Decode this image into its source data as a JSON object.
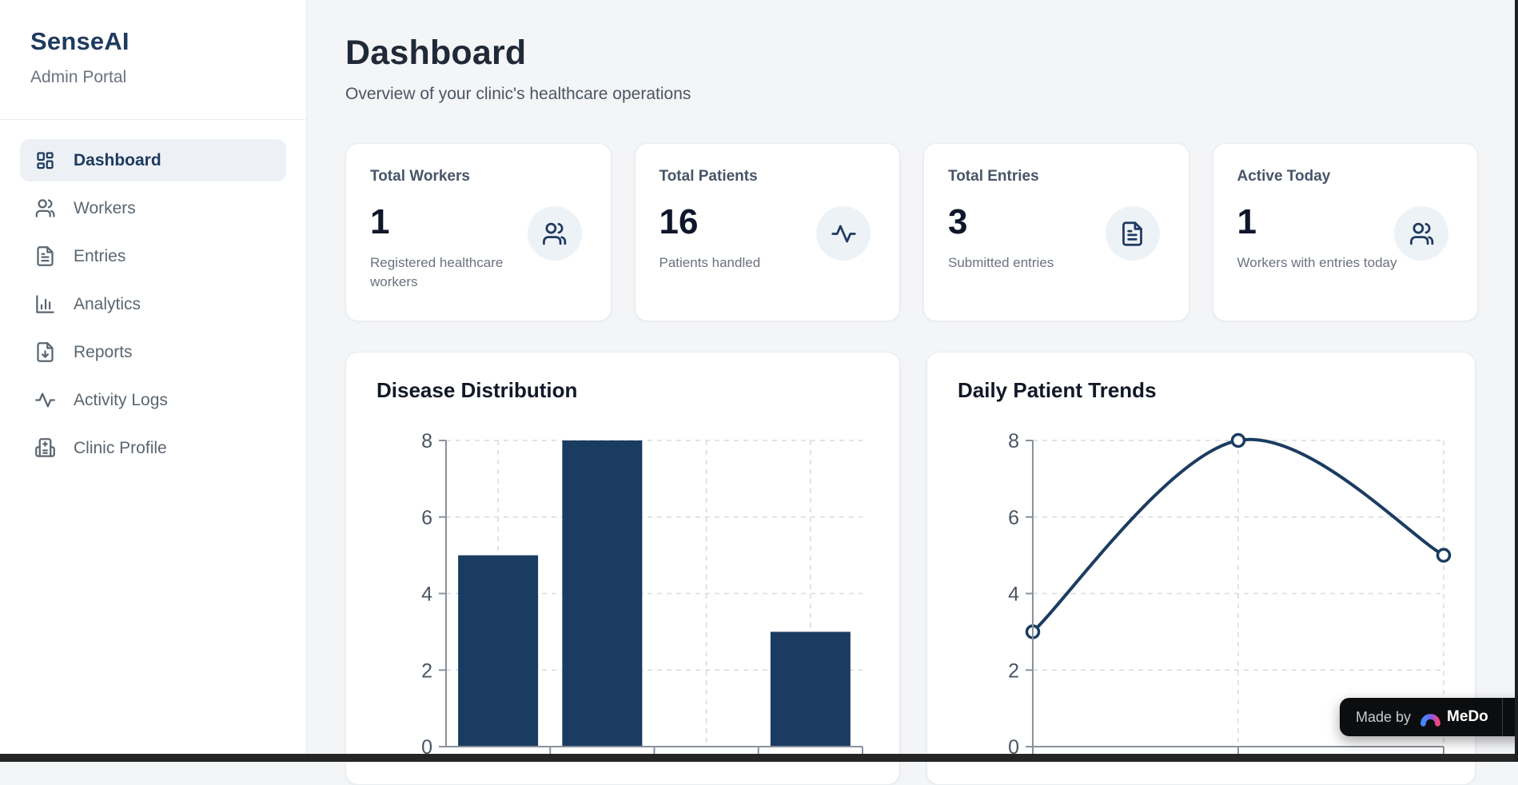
{
  "sidebar": {
    "brand": "SenseAI",
    "subtitle": "Admin Portal",
    "items": [
      {
        "label": "Dashboard",
        "icon": "dashboard-grid-icon",
        "active": true
      },
      {
        "label": "Workers",
        "icon": "users-icon",
        "active": false
      },
      {
        "label": "Entries",
        "icon": "file-text-icon",
        "active": false
      },
      {
        "label": "Analytics",
        "icon": "bar-chart-icon",
        "active": false
      },
      {
        "label": "Reports",
        "icon": "file-download-icon",
        "active": false
      },
      {
        "label": "Activity Logs",
        "icon": "activity-icon",
        "active": false
      },
      {
        "label": "Clinic Profile",
        "icon": "hospital-icon",
        "active": false
      }
    ]
  },
  "header": {
    "title": "Dashboard",
    "subtitle": "Overview of your clinic's healthcare operations"
  },
  "stats": [
    {
      "label": "Total Workers",
      "value": "1",
      "description": "Registered healthcare workers",
      "icon": "users-icon"
    },
    {
      "label": "Total Patients",
      "value": "16",
      "description": "Patients handled",
      "icon": "activity-icon"
    },
    {
      "label": "Total Entries",
      "value": "3",
      "description": "Submitted entries",
      "icon": "file-text-icon"
    },
    {
      "label": "Active Today",
      "value": "1",
      "description": "Workers with entries today",
      "icon": "users-icon"
    }
  ],
  "chart_data": [
    {
      "type": "bar",
      "title": "Disease Distribution",
      "values": [
        5,
        8,
        0,
        3
      ],
      "categories": [
        "",
        "",
        "",
        ""
      ],
      "ylim": [
        0,
        8
      ],
      "yticks": [
        0,
        2,
        4,
        6,
        8
      ],
      "grid": true,
      "bar_color": "#1b3c61",
      "note_x_labels": "cut off below viewport"
    },
    {
      "type": "line",
      "title": "Daily Patient Trends",
      "values": [
        3,
        8,
        5
      ],
      "categories": [
        "",
        "",
        ""
      ],
      "ylim": [
        0,
        8
      ],
      "yticks": [
        0,
        2,
        4,
        6,
        8
      ],
      "grid": true,
      "smooth": true,
      "line_color": "#1b3c61",
      "marker": "open-circle",
      "note_x_labels": "cut off below viewport"
    }
  ],
  "badge": {
    "made_by": "Made by",
    "brand": "MeDo",
    "close": "close"
  },
  "colors": {
    "accent_navy": "#1b3c61",
    "sidebar_active_bg": "#edf1f6",
    "sidebar_active_text": "#1e3a5f",
    "page_bg": "#f4f5f7",
    "card_bg": "#ffffff",
    "icon_circle_bg": "#edf2f7",
    "grid_line": "#d7dadf",
    "axis_line": "#8a919b",
    "axis_label": "#4b5563",
    "badge_bg": "#0c0d0f",
    "logo_gradient": [
      "#3f8cff",
      "#7a5cf0",
      "#f0467f"
    ]
  }
}
